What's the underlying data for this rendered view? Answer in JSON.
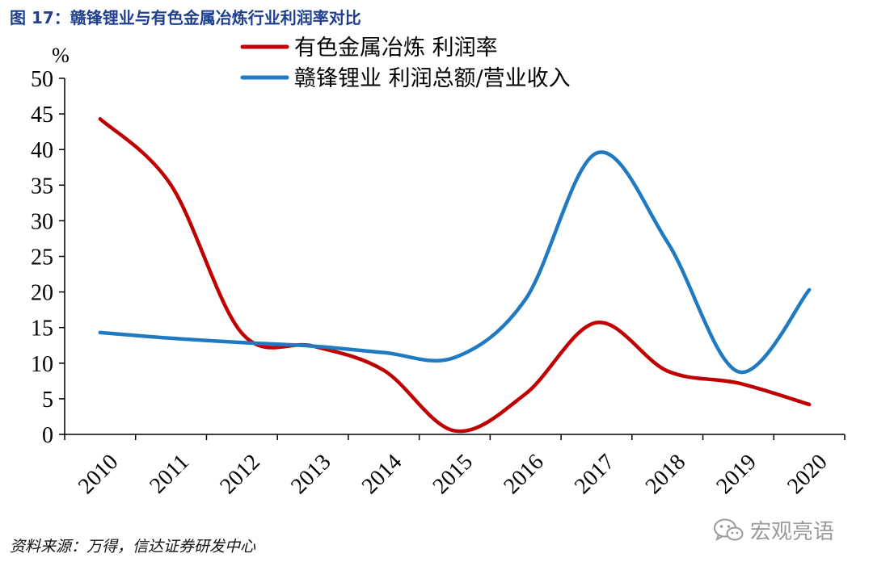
{
  "figure_title": "图 17：赣锋锂业与有色金属冶炼行业利润率对比",
  "source_note": "资料来源：万得，信达证券研发中心",
  "watermark": {
    "text": "宏观亮语",
    "icon": "wechat-icon"
  },
  "colors": {
    "title": "#1f3f8f",
    "series_red": "#c00000",
    "series_blue": "#1f7ac2",
    "axis": "#000000"
  },
  "chart_data": {
    "type": "line",
    "title": "赣锋锂业与有色金属冶炼行业利润率对比",
    "ylabel": "%",
    "ylim": [
      0,
      50
    ],
    "yticks": [
      0,
      5,
      10,
      15,
      20,
      25,
      30,
      35,
      40,
      45,
      50
    ],
    "x": [
      "2010",
      "2011",
      "2012",
      "2013",
      "2014",
      "2015",
      "2016",
      "2017",
      "2018",
      "2019",
      "2020"
    ],
    "grid": false,
    "legend_position": "top",
    "series": [
      {
        "name": "有色金属冶炼 利润率",
        "color": "#c00000",
        "values": [
          44.3,
          35.0,
          14.2,
          12.4,
          9.0,
          0.5,
          5.7,
          15.7,
          8.9,
          7.2,
          4.2
        ]
      },
      {
        "name": "赣锋锂业 利润总额/营业收入",
        "color": "#1f7ac2",
        "values": [
          14.3,
          13.5,
          12.9,
          12.4,
          11.5,
          10.8,
          19.0,
          39.5,
          27.0,
          8.8,
          20.3
        ]
      }
    ]
  }
}
